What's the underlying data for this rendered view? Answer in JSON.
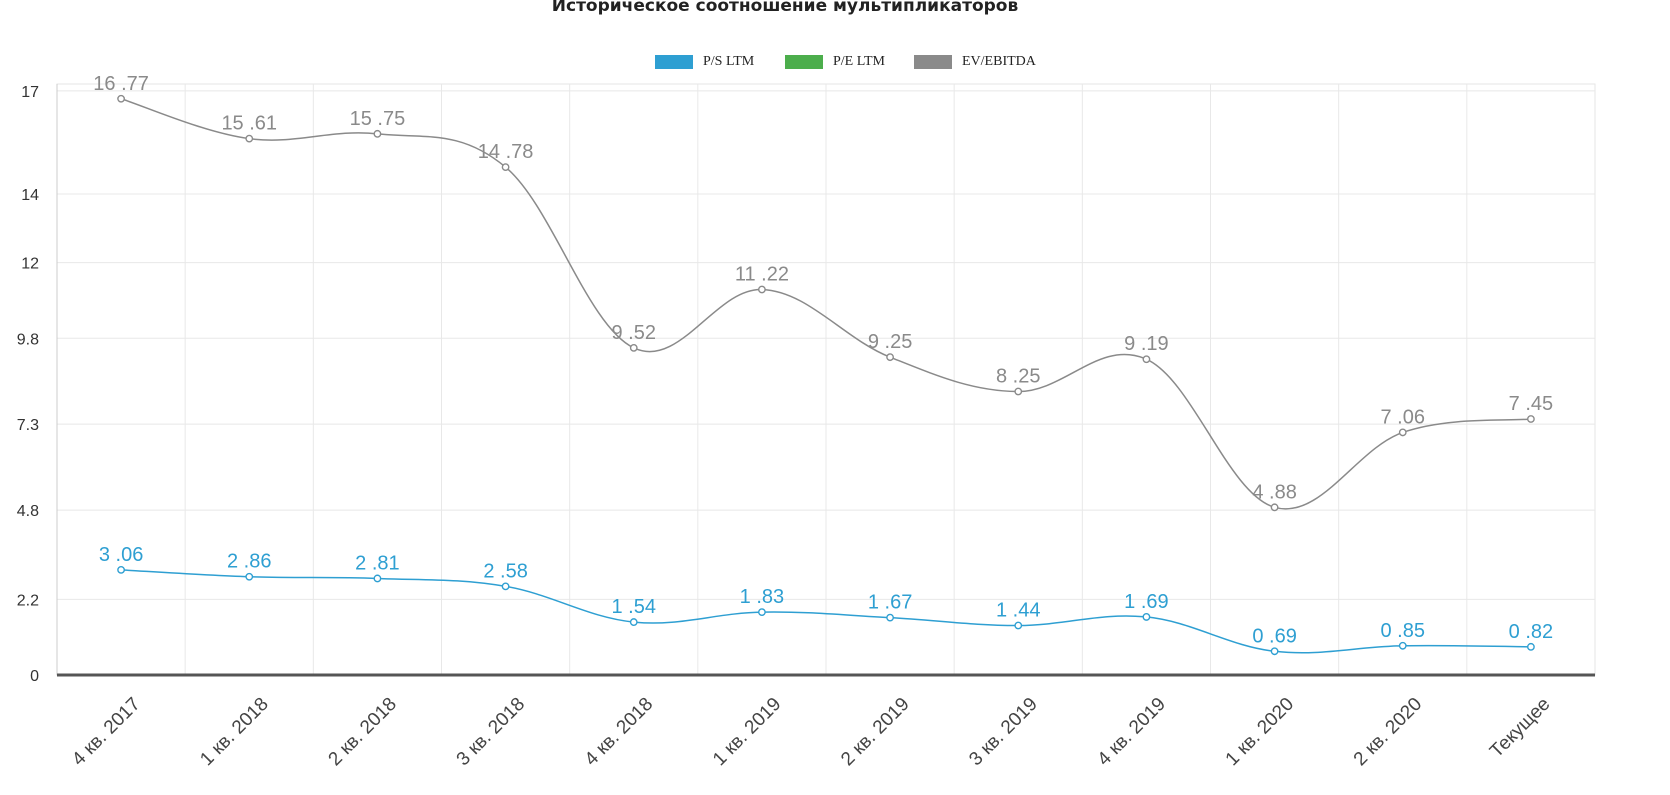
{
  "chart_data": {
    "type": "line",
    "title": "Историческое соотношение мультипликаторов",
    "categories": [
      "4 кв. 2017",
      "1 кв. 2018",
      "2 кв. 2018",
      "3 кв. 2018",
      "4 кв. 2018",
      "1 кв. 2019",
      "2 кв. 2019",
      "3 кв. 2019",
      "4 кв. 2019",
      "1 кв. 2020",
      "2 кв. 2020",
      "Текущее"
    ],
    "yticks": [
      "0",
      "2.2",
      "4.8",
      "7.3",
      "9.8",
      "12",
      "14",
      "17"
    ],
    "ylim": [
      0,
      17.2
    ],
    "grid": true,
    "legend_position": "top-center",
    "legend": [
      {
        "name": "P/S LTM",
        "color": "#2e9fd2"
      },
      {
        "name": "P/E LTM",
        "color": "#4cae4c"
      },
      {
        "name": "EV/EBITDA",
        "color": "#8a8a8a"
      }
    ],
    "series": [
      {
        "name": "P/S LTM",
        "color": "#2e9fd2",
        "values": [
          3.06,
          2.86,
          2.81,
          2.58,
          1.54,
          1.83,
          1.67,
          1.44,
          1.69,
          0.69,
          0.85,
          0.82
        ],
        "labels": [
          "3 .06",
          "2 .86",
          "2 .81",
          "2 .58",
          "1 .54",
          "1 .83",
          "1 .67",
          "1 .44",
          "1 .69",
          "0 .69",
          "0 .85",
          "0 .82"
        ]
      },
      {
        "name": "EV/EBITDA",
        "color": "#8a8a8a",
        "values": [
          16.77,
          15.61,
          15.75,
          14.78,
          9.52,
          11.22,
          9.25,
          8.25,
          9.19,
          4.88,
          7.06,
          7.45
        ],
        "labels": [
          "16 .77",
          "15 .61",
          "15 .75",
          "14 .78",
          "9 .52",
          "11 .22",
          "9 .25",
          "8 .25",
          "9 .19",
          "4 .88",
          "7 .06",
          "7 .45"
        ]
      }
    ]
  }
}
